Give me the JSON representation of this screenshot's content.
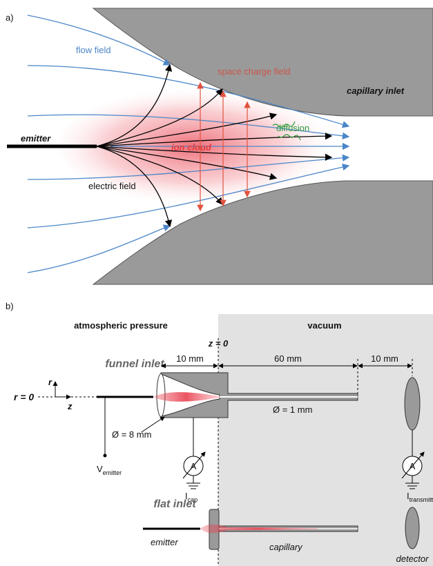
{
  "panel_a": {
    "label": "a)",
    "flow_field": "flow field",
    "space_charge_field": "space charge field",
    "capillary_inlet": "capillary inlet",
    "emitter": "emitter",
    "diffusion": "diffusion",
    "ion_cloud": "ion cloud",
    "electric_field": "electric field"
  },
  "panel_b": {
    "label": "b)",
    "atmospheric_pressure": "atmospheric pressure",
    "vacuum": "vacuum",
    "z0": "z = 0",
    "funnel_inlet": "funnel inlet",
    "dims": [
      "10 mm",
      "60 mm",
      "10 mm"
    ],
    "r_axis": "r",
    "r0": "r = 0",
    "z_axis": "z",
    "capillary_diameter": "Ø = 1 mm",
    "funnel_diameter": "Ø = 8 mm",
    "ammeter_cap": "A",
    "ammeter_transmitted": "A",
    "v_emitter": {
      "symbol": "V",
      "subscript": "emitter"
    },
    "i_cap": {
      "symbol": "I",
      "subscript": "cap"
    },
    "i_transmitted": {
      "symbol": "I",
      "subscript": "transmitted"
    },
    "flat_inlet": "flat inlet",
    "flat_emitter": "emitter",
    "capillary": "capillary",
    "detector": "detector"
  }
}
